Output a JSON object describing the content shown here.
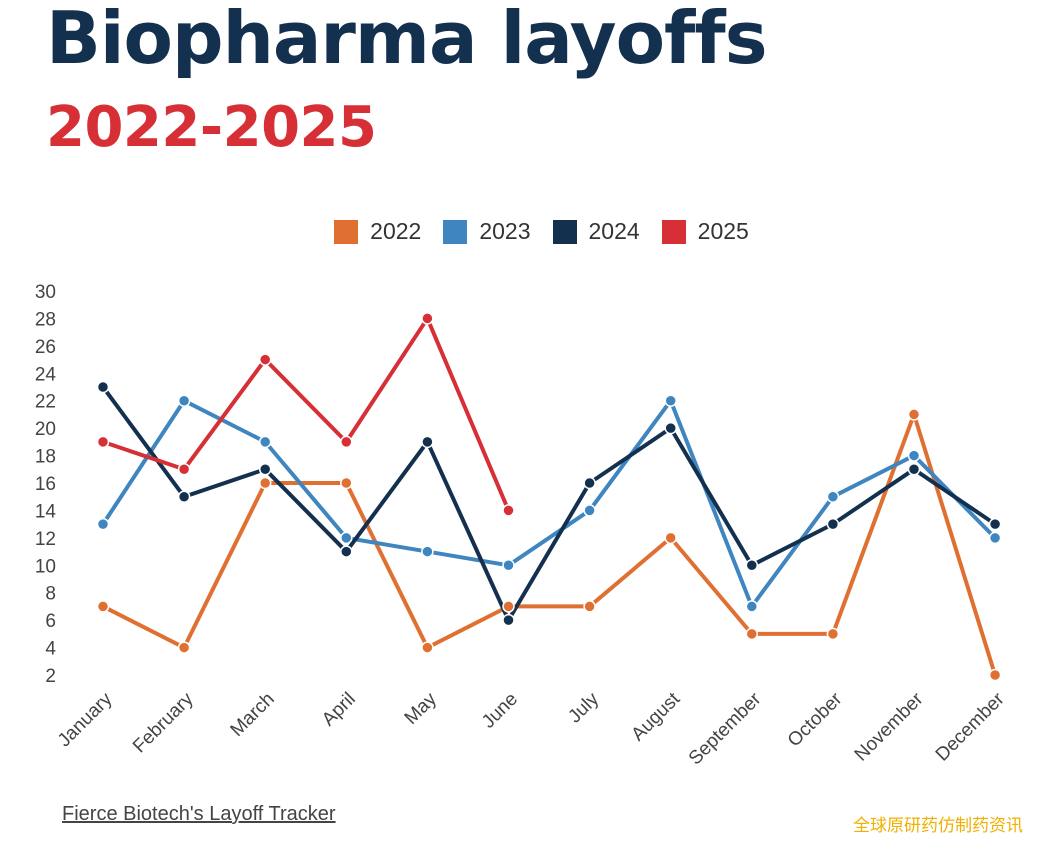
{
  "header": {
    "title": "Biopharma layoffs",
    "subtitle": "2022-2025"
  },
  "legend": [
    {
      "label": "2022",
      "color": "#e07031"
    },
    {
      "label": "2023",
      "color": "#3f86c0"
    },
    {
      "label": "2024",
      "color": "#14304f"
    },
    {
      "label": "2025",
      "color": "#d62f35"
    }
  ],
  "footer": {
    "source_link": "Fierce Biotech's Layoff Tracker",
    "watermark": "全球原研药仿制药资讯"
  },
  "chart_data": {
    "type": "line",
    "title": "Biopharma layoffs 2022-2025",
    "xlabel": "",
    "ylabel": "",
    "categories": [
      "January",
      "February",
      "March",
      "April",
      "May",
      "June",
      "July",
      "August",
      "September",
      "October",
      "November",
      "December"
    ],
    "yticks": [
      2,
      4,
      6,
      8,
      10,
      12,
      14,
      16,
      18,
      20,
      22,
      24,
      26,
      28,
      30
    ],
    "ylim": [
      2,
      30
    ],
    "grid": false,
    "legend_position": "top-center",
    "series": [
      {
        "name": "2022",
        "color": "#e07031",
        "values": [
          7,
          4,
          16,
          16,
          4,
          7,
          7,
          12,
          5,
          5,
          21,
          2
        ]
      },
      {
        "name": "2023",
        "color": "#3f86c0",
        "values": [
          13,
          22,
          19,
          12,
          11,
          10,
          14,
          22,
          7,
          15,
          18,
          12
        ]
      },
      {
        "name": "2024",
        "color": "#14304f",
        "values": [
          23,
          15,
          17,
          11,
          19,
          6,
          16,
          20,
          10,
          13,
          17,
          13
        ]
      },
      {
        "name": "2025",
        "color": "#d62f35",
        "values": [
          19,
          17,
          25,
          19,
          28,
          14
        ]
      }
    ]
  }
}
